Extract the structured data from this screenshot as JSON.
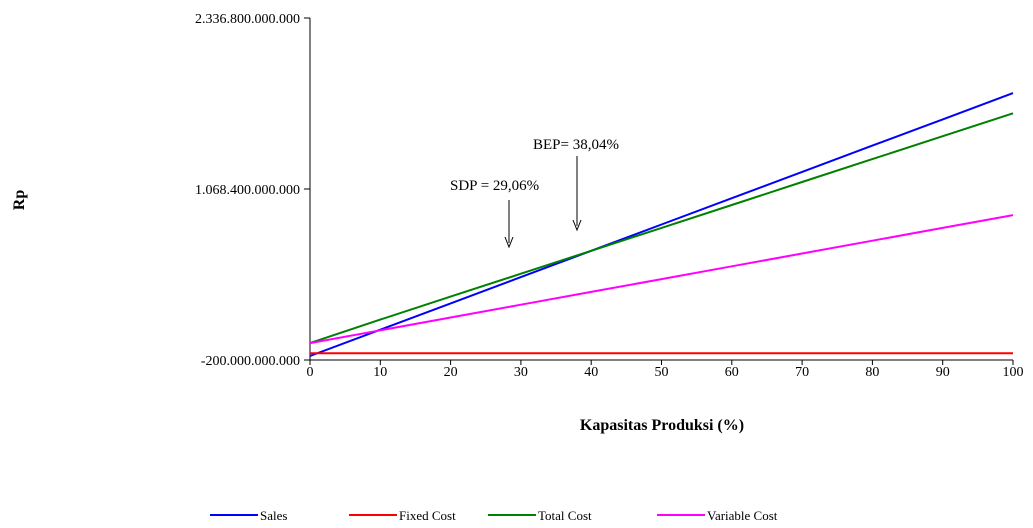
{
  "chart_data": {
    "type": "line",
    "xlabel": "Kapasitas Produksi  (%)",
    "ylabel": "Rp",
    "xlim": [
      0,
      100
    ],
    "ylim": [
      -200000000000,
      2336800000000
    ],
    "x_ticks": [
      0,
      10,
      20,
      30,
      40,
      50,
      60,
      70,
      80,
      90,
      100
    ],
    "x_tick_labels": [
      "0",
      "10",
      "20",
      "30",
      "40",
      "50",
      "60",
      "70",
      "80",
      "90",
      "100"
    ],
    "y_ticks": [
      -200000000000,
      1068400000000,
      2336800000000
    ],
    "y_tick_labels": [
      "-200.000.000.000",
      "1.068.400.000.000",
      "2.336.800.000.000"
    ],
    "x": [
      0,
      10,
      20,
      30,
      40,
      50,
      60,
      70,
      80,
      90,
      100
    ],
    "series": [
      {
        "name": "Sales",
        "color": "#0000ff",
        "values": [
          -170000000000,
          25000000000,
          220000000000,
          415000000000,
          610000000000,
          805000000000,
          1000000000000,
          1195000000000,
          1390000000000,
          1585000000000,
          1780000000000
        ]
      },
      {
        "name": "Fixed Cost",
        "color": "#ff0000",
        "values": [
          -150000000000,
          -150000000000,
          -150000000000,
          -150000000000,
          -150000000000,
          -150000000000,
          -150000000000,
          -150000000000,
          -150000000000,
          -150000000000,
          -150000000000
        ]
      },
      {
        "name": "Total Cost",
        "color": "#008000",
        "values": [
          -75000000000,
          100000000000,
          270000000000,
          440000000000,
          610000000000,
          780000000000,
          950000000000,
          1120000000000,
          1290000000000,
          1460000000000,
          1630000000000
        ]
      },
      {
        "name": "Variable Cost",
        "color": "#ff00ff",
        "values": [
          -75000000000,
          20000000000,
          115000000000,
          210000000000,
          305000000000,
          400000000000,
          495000000000,
          590000000000,
          685000000000,
          780000000000,
          875000000000
        ]
      }
    ],
    "annotations": [
      {
        "text": "BEP= 38,04%",
        "x": 38.04
      },
      {
        "text": "SDP = 29,06%",
        "x": 29.06
      }
    ],
    "grid": false,
    "legend_position": "bottom"
  }
}
